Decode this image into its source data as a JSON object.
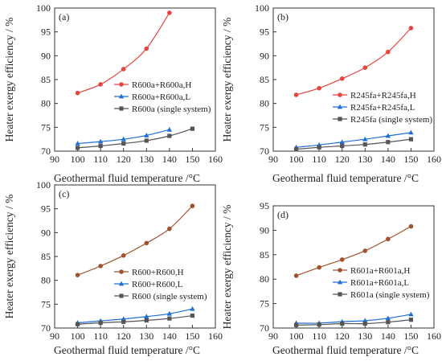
{
  "chart_data": [
    {
      "type": "line",
      "panel_label": "(a)",
      "xlabel": "Geothermal fluid temperature /°C",
      "ylabel": "Heater exergy efficiency / %",
      "xlim": [
        90,
        160
      ],
      "ylim": [
        70,
        100
      ],
      "xticks": [
        90,
        100,
        110,
        120,
        130,
        140,
        150,
        160
      ],
      "yticks": [
        70,
        75,
        80,
        85,
        90,
        95,
        100
      ],
      "grid": false,
      "legend_position": "right-center",
      "series": [
        {
          "name": "R600a+R600a,H",
          "color": "#e8433f",
          "marker": "circle",
          "x": [
            100,
            110,
            120,
            130,
            140
          ],
          "y": [
            82.2,
            84.0,
            87.2,
            91.5,
            99.0
          ]
        },
        {
          "name": "R600a+R600a,L",
          "color": "#1f6fd6",
          "marker": "triangle",
          "x": [
            100,
            110,
            120,
            130,
            140
          ],
          "y": [
            71.6,
            72.0,
            72.5,
            73.3,
            74.5
          ]
        },
        {
          "name": "R600a (single system)",
          "color": "#555555",
          "marker": "square",
          "x": [
            100,
            110,
            120,
            130,
            140,
            150
          ],
          "y": [
            70.7,
            71.1,
            71.6,
            72.2,
            73.2,
            74.7
          ]
        }
      ]
    },
    {
      "type": "line",
      "panel_label": "(b)",
      "xlabel": "Geothermal fluid temperature /°C",
      "ylabel": "Heater exergy efficiency / %",
      "xlim": [
        90,
        160
      ],
      "ylim": [
        70,
        100
      ],
      "xticks": [
        90,
        100,
        110,
        120,
        130,
        140,
        150,
        160
      ],
      "yticks": [
        70,
        75,
        80,
        85,
        90,
        95,
        100
      ],
      "grid": false,
      "legend_position": "right-center",
      "series": [
        {
          "name": "R245fa+R245fa,H",
          "color": "#e8433f",
          "marker": "circle",
          "x": [
            100,
            110,
            120,
            130,
            140,
            150
          ],
          "y": [
            81.8,
            83.2,
            85.2,
            87.5,
            90.8,
            95.8
          ]
        },
        {
          "name": "R245fa+R245fa,L",
          "color": "#1f6fd6",
          "marker": "triangle",
          "x": [
            100,
            110,
            120,
            130,
            140,
            150
          ],
          "y": [
            70.8,
            71.3,
            71.9,
            72.5,
            73.2,
            73.9
          ]
        },
        {
          "name": "R245fa (single system)",
          "color": "#555555",
          "marker": "square",
          "x": [
            100,
            110,
            120,
            130,
            140,
            150
          ],
          "y": [
            70.4,
            70.8,
            71.1,
            71.4,
            71.9,
            72.5
          ]
        }
      ]
    },
    {
      "type": "line",
      "panel_label": "(c)",
      "xlabel": "Geothermal fluid temperature /°C",
      "ylabel": "Heater exergy efficiency / %",
      "xlim": [
        90,
        160
      ],
      "ylim": [
        70,
        100
      ],
      "xticks": [
        90,
        100,
        110,
        120,
        130,
        140,
        150,
        160
      ],
      "yticks": [
        70,
        75,
        80,
        85,
        90,
        95,
        100
      ],
      "grid": false,
      "legend_position": "right-center",
      "series": [
        {
          "name": "R600+R600,H",
          "color": "#a0522d",
          "marker": "circle",
          "x": [
            100,
            110,
            120,
            130,
            140,
            150
          ],
          "y": [
            81.1,
            83.0,
            85.2,
            87.8,
            90.8,
            95.6
          ]
        },
        {
          "name": "R600+R600,L",
          "color": "#1f6fd6",
          "marker": "triangle",
          "x": [
            100,
            110,
            120,
            130,
            140,
            150
          ],
          "y": [
            71.1,
            71.5,
            71.9,
            72.4,
            73.0,
            74.0
          ]
        },
        {
          "name": "R600 (single system)",
          "color": "#555555",
          "marker": "square",
          "x": [
            100,
            110,
            120,
            130,
            140,
            150
          ],
          "y": [
            70.8,
            71.1,
            71.3,
            71.6,
            72.0,
            72.6
          ]
        }
      ]
    },
    {
      "type": "line",
      "panel_label": "(d)",
      "xlabel": "Geothermal fluid temperature /°C",
      "ylabel": "Heater exergy efficiency / %",
      "xlim": [
        90,
        160
      ],
      "ylim": [
        70,
        95
      ],
      "xticks": [
        90,
        100,
        110,
        120,
        130,
        140,
        150,
        160
      ],
      "yticks": [
        70,
        75,
        80,
        85,
        90,
        95
      ],
      "grid": false,
      "legend_position": "right-center",
      "series": [
        {
          "name": "R601a+R601a,H",
          "color": "#a0522d",
          "marker": "circle",
          "x": [
            100,
            110,
            120,
            130,
            140,
            150
          ],
          "y": [
            80.7,
            82.4,
            84.0,
            85.8,
            88.2,
            90.8
          ]
        },
        {
          "name": "R601a+R601a,L",
          "color": "#1f6fd6",
          "marker": "triangle",
          "x": [
            100,
            110,
            120,
            130,
            140,
            150
          ],
          "y": [
            71.0,
            71.0,
            71.3,
            71.5,
            72.0,
            72.8
          ]
        },
        {
          "name": "R601a (single system)",
          "color": "#555555",
          "marker": "square",
          "x": [
            100,
            110,
            120,
            130,
            140,
            150
          ],
          "y": [
            70.6,
            70.7,
            70.9,
            70.9,
            71.2,
            71.7
          ]
        }
      ]
    }
  ]
}
